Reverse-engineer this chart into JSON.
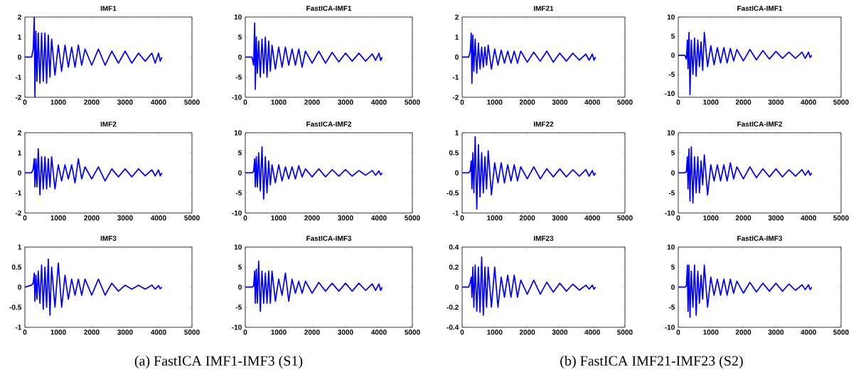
{
  "chart_data": [
    {
      "type": "line",
      "title": "IMF1",
      "color": "#0000ff",
      "xlim": [
        0,
        5000
      ],
      "xticks": [
        0,
        1000,
        2000,
        3000,
        4000,
        5000
      ],
      "ylim": [
        -2,
        2
      ],
      "yticks": [
        -2,
        -1,
        0,
        1,
        2
      ],
      "x": [
        0,
        200,
        250,
        280,
        300,
        330,
        360,
        400,
        450,
        500,
        550,
        600,
        650,
        700,
        750,
        800,
        900,
        1000,
        1100,
        1200,
        1300,
        1400,
        1500,
        1600,
        1700,
        1800,
        2000,
        2200,
        2400,
        2600,
        2800,
        3000,
        3200,
        3400,
        3600,
        3800,
        3900,
        4000,
        4050,
        4100
      ],
      "values": [
        0,
        0,
        0.4,
        2,
        -2,
        1.3,
        -1.2,
        1.2,
        -1.3,
        1.2,
        -1.2,
        1.2,
        -1.3,
        1.1,
        -1.0,
        0.9,
        -0.9,
        0.6,
        -0.7,
        0.6,
        -0.5,
        0.5,
        -0.5,
        0.6,
        -0.4,
        0.4,
        -0.4,
        0.4,
        -0.4,
        0.3,
        -0.3,
        0.3,
        -0.3,
        0.2,
        -0.2,
        0.2,
        -0.3,
        0.2,
        -0.2,
        0
      ]
    },
    {
      "type": "line",
      "title": "FastICA-IMF1",
      "color": "#0000ff",
      "xlim": [
        0,
        5000
      ],
      "xticks": [
        0,
        1000,
        2000,
        3000,
        4000,
        5000
      ],
      "ylim": [
        -10,
        10
      ],
      "yticks": [
        -10,
        -5,
        0,
        5,
        10
      ],
      "x": [
        0,
        200,
        250,
        280,
        300,
        330,
        360,
        400,
        450,
        500,
        550,
        600,
        650,
        700,
        750,
        800,
        900,
        1000,
        1100,
        1200,
        1300,
        1400,
        1500,
        1600,
        1700,
        1800,
        2000,
        2200,
        2400,
        2600,
        2800,
        3000,
        3200,
        3400,
        3600,
        3800,
        3900,
        4000,
        4050,
        4100
      ],
      "values": [
        0,
        0,
        -2,
        8.5,
        -8,
        5,
        -4,
        4,
        -5,
        4.5,
        -4,
        5,
        -5,
        4,
        -3.5,
        3,
        -3,
        2.5,
        -2.5,
        2.5,
        -2,
        2,
        -2,
        2,
        -2.5,
        1.5,
        -1.5,
        1.5,
        -1.5,
        1.2,
        -1.2,
        1,
        -1,
        1,
        -1,
        0.8,
        -0.8,
        1,
        -0.8,
        0
      ]
    },
    {
      "type": "line",
      "title": "IMF21",
      "color": "#0000ff",
      "xlim": [
        0,
        5000
      ],
      "xticks": [
        0,
        1000,
        2000,
        3000,
        4000,
        5000
      ],
      "ylim": [
        -2,
        2
      ],
      "yticks": [
        -2,
        -1,
        0,
        1,
        2
      ],
      "x": [
        0,
        200,
        250,
        280,
        300,
        330,
        360,
        400,
        450,
        500,
        550,
        600,
        650,
        700,
        750,
        800,
        900,
        1000,
        1100,
        1200,
        1300,
        1400,
        1500,
        1600,
        1700,
        1800,
        2000,
        2200,
        2400,
        2600,
        2800,
        3000,
        3200,
        3400,
        3600,
        3800,
        3900,
        4000,
        4050,
        4100
      ],
      "values": [
        0,
        0,
        0.3,
        1.2,
        -1.3,
        1.1,
        -0.7,
        0.9,
        -0.8,
        0.7,
        -0.6,
        0.5,
        -0.5,
        0.5,
        -0.4,
        0.6,
        -0.6,
        0.4,
        -0.4,
        0.35,
        -0.3,
        0.3,
        -0.3,
        0.3,
        -0.3,
        0.3,
        -0.25,
        0.25,
        -0.2,
        0.3,
        -0.25,
        0.2,
        -0.2,
        0.2,
        -0.15,
        0.15,
        -0.15,
        0.15,
        -0.15,
        0
      ]
    },
    {
      "type": "line",
      "title": "FastICA-IMF1",
      "color": "#0000ff",
      "xlim": [
        0,
        5000
      ],
      "xticks": [
        0,
        1000,
        2000,
        3000,
        4000,
        5000
      ],
      "ylim": [
        -11,
        10
      ],
      "yticks": [
        -10,
        -5,
        0,
        5,
        10
      ],
      "x": [
        0,
        200,
        250,
        280,
        300,
        330,
        360,
        400,
        450,
        500,
        550,
        600,
        650,
        700,
        750,
        800,
        900,
        1000,
        1100,
        1200,
        1300,
        1400,
        1500,
        1600,
        1700,
        1800,
        2000,
        2200,
        2400,
        2600,
        2800,
        3000,
        3200,
        3400,
        3600,
        3800,
        3900,
        4000,
        4050,
        4100
      ],
      "values": [
        0,
        0,
        -1,
        4,
        -3.5,
        6,
        -10.3,
        4,
        -5,
        4.5,
        -5.5,
        4,
        -3,
        3.5,
        -4,
        6,
        -3,
        2.5,
        -2.5,
        2,
        -2,
        2,
        -2,
        1.8,
        -1.5,
        1.5,
        -1.5,
        1.5,
        -1.2,
        1.2,
        -1,
        1,
        -0.8,
        0.8,
        -0.8,
        0.8,
        -0.8,
        0.8,
        -0.6,
        0
      ]
    },
    {
      "type": "line",
      "title": "IMF2",
      "color": "#0000ff",
      "xlim": [
        0,
        5000
      ],
      "xticks": [
        0,
        1000,
        2000,
        3000,
        4000,
        5000
      ],
      "ylim": [
        -2,
        2
      ],
      "yticks": [
        -2,
        -1,
        0,
        1,
        2
      ],
      "x": [
        0,
        200,
        250,
        280,
        300,
        330,
        360,
        400,
        450,
        500,
        550,
        600,
        650,
        700,
        750,
        800,
        900,
        1000,
        1100,
        1200,
        1300,
        1400,
        1500,
        1600,
        1700,
        1800,
        2000,
        2200,
        2400,
        2600,
        2800,
        3000,
        3200,
        3400,
        3600,
        3800,
        3900,
        4000,
        4050,
        4100
      ],
      "values": [
        0,
        0,
        0.2,
        0.7,
        -0.7,
        0.7,
        -0.7,
        1.2,
        -1.1,
        0.8,
        -0.8,
        0.8,
        -0.8,
        0.7,
        -0.7,
        0.8,
        -0.8,
        0.4,
        -0.4,
        0.4,
        -0.3,
        0.4,
        -0.5,
        0.7,
        -0.3,
        0.3,
        -0.3,
        0.3,
        -0.4,
        0.2,
        -0.2,
        0.2,
        -0.2,
        0.2,
        -0.15,
        0.15,
        -0.15,
        0.15,
        -0.15,
        0
      ]
    },
    {
      "type": "line",
      "title": "FastICA-IMF2",
      "color": "#0000ff",
      "xlim": [
        0,
        5000
      ],
      "xticks": [
        0,
        1000,
        2000,
        3000,
        4000,
        5000
      ],
      "ylim": [
        -10,
        10
      ],
      "yticks": [
        -10,
        -5,
        0,
        5,
        10
      ],
      "x": [
        0,
        200,
        250,
        280,
        300,
        330,
        360,
        400,
        450,
        500,
        550,
        600,
        650,
        700,
        750,
        800,
        900,
        1000,
        1100,
        1200,
        1300,
        1400,
        1500,
        1600,
        1700,
        1800,
        2000,
        2200,
        2400,
        2600,
        2800,
        3000,
        3200,
        3400,
        3600,
        3800,
        3900,
        4000,
        4050,
        4100
      ],
      "values": [
        0,
        0,
        0.3,
        3.5,
        -3.5,
        4,
        -3.5,
        5,
        -4.5,
        6.5,
        -6.5,
        4,
        -5,
        3,
        -3,
        2,
        -2.5,
        2,
        -2,
        1.5,
        -1.5,
        1.5,
        -1.5,
        1.8,
        -1,
        1,
        -1,
        1,
        -1,
        0.8,
        -0.8,
        0.8,
        -0.8,
        0.6,
        -0.6,
        0.6,
        -0.6,
        0.5,
        -0.5,
        0
      ]
    },
    {
      "type": "line",
      "title": "IMF22",
      "color": "#0000ff",
      "xlim": [
        0,
        5000
      ],
      "xticks": [
        0,
        1000,
        2000,
        3000,
        4000,
        5000
      ],
      "ylim": [
        -1,
        1
      ],
      "yticks": [
        -1,
        -0.5,
        0,
        0.5,
        1
      ],
      "x": [
        0,
        200,
        250,
        280,
        300,
        330,
        360,
        400,
        450,
        500,
        550,
        600,
        650,
        700,
        750,
        800,
        900,
        1000,
        1100,
        1200,
        1300,
        1400,
        1500,
        1600,
        1700,
        1800,
        2000,
        2200,
        2400,
        2600,
        2800,
        3000,
        3200,
        3400,
        3600,
        3800,
        3900,
        4000,
        4050,
        4100
      ],
      "values": [
        0,
        0,
        0.05,
        0.3,
        -0.4,
        0.5,
        -0.5,
        0.9,
        -0.9,
        0.7,
        -0.6,
        0.5,
        -0.5,
        0.4,
        -0.4,
        0.55,
        -0.55,
        0.25,
        -0.25,
        0.25,
        -0.25,
        0.2,
        -0.2,
        0.2,
        -0.2,
        0.15,
        -0.15,
        0.15,
        -0.15,
        0.1,
        -0.1,
        0.1,
        -0.1,
        0.08,
        -0.08,
        0.08,
        -0.08,
        0.06,
        -0.06,
        0
      ]
    },
    {
      "type": "line",
      "title": "FastICA-IMF2",
      "color": "#0000ff",
      "xlim": [
        0,
        5000
      ],
      "xticks": [
        0,
        1000,
        2000,
        3000,
        4000,
        5000
      ],
      "ylim": [
        -10,
        10
      ],
      "yticks": [
        -10,
        -5,
        0,
        5,
        10
      ],
      "x": [
        0,
        200,
        250,
        280,
        300,
        330,
        360,
        400,
        450,
        500,
        550,
        600,
        650,
        700,
        750,
        800,
        900,
        1000,
        1100,
        1200,
        1300,
        1400,
        1500,
        1600,
        1700,
        1800,
        2000,
        2200,
        2400,
        2600,
        2800,
        3000,
        3200,
        3400,
        3600,
        3800,
        3900,
        4000,
        4050,
        4100
      ],
      "values": [
        0,
        0,
        0.3,
        4,
        -4,
        6,
        -7,
        6.5,
        -7.5,
        4,
        -5,
        4,
        -5,
        3,
        -3,
        4.5,
        -5.5,
        2,
        -2,
        2,
        -2,
        2,
        -2,
        2.5,
        -1.5,
        1.5,
        -1.5,
        1.5,
        -1.2,
        1,
        -1,
        1,
        -1,
        0.8,
        -0.8,
        0.8,
        -0.6,
        0.6,
        -0.6,
        0
      ]
    },
    {
      "type": "line",
      "title": "IMF3",
      "color": "#0000ff",
      "xlim": [
        0,
        5000
      ],
      "xticks": [
        0,
        1000,
        2000,
        3000,
        4000,
        5000
      ],
      "ylim": [
        -1,
        1
      ],
      "yticks": [
        -1,
        -0.5,
        0,
        0.5,
        1
      ],
      "x": [
        0,
        200,
        250,
        280,
        300,
        330,
        360,
        400,
        450,
        500,
        550,
        600,
        650,
        700,
        750,
        800,
        900,
        1000,
        1100,
        1200,
        1300,
        1400,
        1500,
        1600,
        1700,
        1800,
        2000,
        2200,
        2400,
        2600,
        2800,
        3000,
        3200,
        3400,
        3600,
        3800,
        3900,
        4000,
        4050,
        4100
      ],
      "values": [
        0,
        0.05,
        0.1,
        0.35,
        -0.35,
        0.3,
        -0.3,
        0.4,
        -0.4,
        0.55,
        -0.55,
        0.5,
        -0.5,
        0.7,
        -0.7,
        0.5,
        -0.5,
        0.6,
        -0.5,
        0.3,
        -0.3,
        0.2,
        -0.2,
        0.2,
        -0.2,
        0.2,
        -0.2,
        0.2,
        -0.2,
        0.1,
        -0.1,
        0.05,
        -0.05,
        0.05,
        -0.05,
        0.05,
        -0.05,
        0.04,
        -0.04,
        0
      ],
      "annotations": [
        "(a) FastICA IMF1-IMF3 (S1)"
      ]
    },
    {
      "type": "line",
      "title": "FastICA-IMF3",
      "color": "#0000ff",
      "xlim": [
        0,
        5000
      ],
      "xticks": [
        0,
        1000,
        2000,
        3000,
        4000,
        5000
      ],
      "ylim": [
        -10,
        10
      ],
      "yticks": [
        -10,
        -5,
        0,
        5,
        10
      ],
      "x": [
        0,
        200,
        250,
        280,
        300,
        330,
        360,
        400,
        450,
        500,
        550,
        600,
        650,
        700,
        750,
        800,
        900,
        1000,
        1100,
        1200,
        1300,
        1400,
        1500,
        1600,
        1700,
        1800,
        2000,
        2200,
        2400,
        2600,
        2800,
        3000,
        3200,
        3400,
        3600,
        3800,
        3900,
        4000,
        4050,
        4100
      ],
      "values": [
        0,
        0,
        0.3,
        4,
        -4,
        4.5,
        -4,
        6.5,
        -6,
        4,
        -4,
        3.5,
        -4,
        4,
        -4,
        4,
        -3.5,
        2,
        -2,
        3.5,
        -3.5,
        2,
        -1.5,
        1.5,
        -1.5,
        1.5,
        -1.5,
        1.2,
        -1,
        1,
        -1,
        1,
        -1,
        1,
        -0.8,
        0.8,
        -0.8,
        0.8,
        -0.8,
        0
      ]
    },
    {
      "type": "line",
      "title": "IMF23",
      "color": "#0000ff",
      "xlim": [
        0,
        5000
      ],
      "xticks": [
        0,
        1000,
        2000,
        3000,
        4000,
        5000
      ],
      "ylim": [
        -0.4,
        0.4
      ],
      "yticks": [
        -0.4,
        -0.2,
        0,
        0.2,
        0.4
      ],
      "x": [
        0,
        200,
        250,
        280,
        300,
        330,
        360,
        400,
        450,
        500,
        550,
        600,
        650,
        700,
        750,
        800,
        900,
        1000,
        1100,
        1200,
        1300,
        1400,
        1500,
        1600,
        1700,
        1800,
        2000,
        2200,
        2400,
        2600,
        2800,
        3000,
        3200,
        3400,
        3600,
        3800,
        3900,
        4000,
        4050,
        4100
      ],
      "values": [
        0,
        0,
        0.05,
        0.1,
        -0.1,
        0.2,
        -0.2,
        0.22,
        -0.24,
        0.2,
        -0.25,
        0.3,
        -0.28,
        0.2,
        -0.2,
        0.2,
        -0.2,
        0.2,
        -0.2,
        0.1,
        -0.1,
        0.12,
        -0.1,
        0.12,
        -0.1,
        0.07,
        -0.07,
        0.07,
        -0.07,
        0.05,
        -0.05,
        0.04,
        -0.04,
        0.03,
        -0.03,
        0.02,
        -0.02,
        0.02,
        -0.02,
        0
      ],
      "annotations": [
        "(b) FastICA IMF21-IMF23 (S2)"
      ]
    },
    {
      "type": "line",
      "title": "FastICA-IMF3",
      "color": "#0000ff",
      "xlim": [
        0,
        5000
      ],
      "xticks": [
        0,
        1000,
        2000,
        3000,
        4000,
        5000
      ],
      "ylim": [
        -10,
        10
      ],
      "yticks": [
        -10,
        -5,
        0,
        5,
        10
      ],
      "x": [
        0,
        200,
        250,
        280,
        300,
        330,
        360,
        400,
        450,
        500,
        550,
        600,
        650,
        700,
        750,
        800,
        900,
        1000,
        1100,
        1200,
        1300,
        1400,
        1500,
        1600,
        1700,
        1800,
        2000,
        2200,
        2400,
        2600,
        2800,
        3000,
        3200,
        3400,
        3600,
        3800,
        3900,
        4000,
        4050,
        4100
      ],
      "values": [
        0,
        0,
        0.3,
        5.5,
        -6,
        5.5,
        -7.5,
        4,
        -5,
        5.5,
        -7,
        4,
        -4,
        3,
        -3,
        5.5,
        -5,
        2.5,
        -2,
        2,
        -2,
        2,
        -2,
        2,
        -1.5,
        1.5,
        -1.5,
        1.2,
        -1.2,
        1,
        -1,
        1,
        -1,
        0.8,
        -0.8,
        0.6,
        -0.6,
        0.6,
        -0.6,
        0
      ]
    }
  ]
}
